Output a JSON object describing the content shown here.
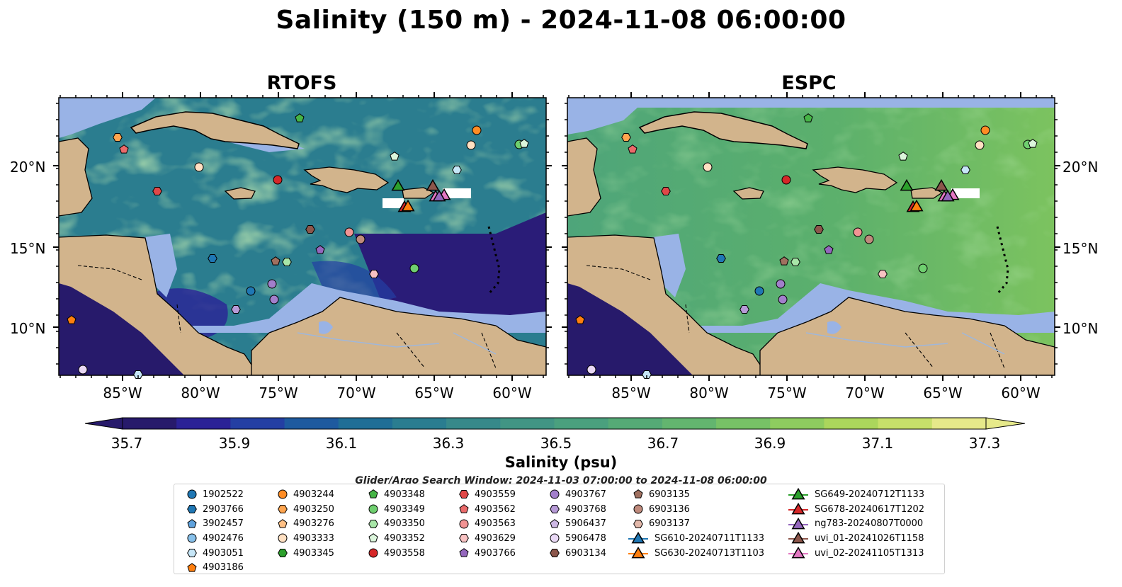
{
  "figure": {
    "title": "Salinity (150 m) - 2024-11-08 06:00:00",
    "panels": [
      "RTOFS",
      "ESPC"
    ],
    "colorbar_label": "Salinity (psu)",
    "colorbar_ticks": [
      "35.7",
      "35.9",
      "36.1",
      "36.3",
      "36.5",
      "36.7",
      "36.9",
      "37.1",
      "37.3"
    ],
    "colorbar_colors": [
      "#271a6b",
      "#2b2296",
      "#243fa3",
      "#1e5a9f",
      "#1f6e96",
      "#2a7d90",
      "#37898a",
      "#419584",
      "#4aa07e",
      "#55aa76",
      "#63b56f",
      "#77c166",
      "#8ecc5f",
      "#abd65c",
      "#c7e06a",
      "#e6e98a"
    ],
    "lat_ticks": [
      "20°N",
      "15°N",
      "10°N"
    ],
    "lon_ticks": [
      "85°W",
      "80°W",
      "75°W",
      "70°W",
      "65°W",
      "60°W"
    ],
    "search_window": "Glider/Argo Search Window: 2024-11-03 07:00:00 to 2024-11-08 06:00:00",
    "colors": {
      "land": "#d2b48c",
      "shallow": "#99b3e6",
      "espc_mean": "#5aaa6e",
      "rtofs_mean": "#3f8f88"
    }
  },
  "legend": {
    "columns": [
      [
        {
          "label": "1902522",
          "marker": "circle",
          "color": "#1f77b4"
        },
        {
          "label": "2903766",
          "marker": "hexagon",
          "color": "#1f77b4"
        },
        {
          "label": "3902457",
          "marker": "pentagon",
          "color": "#5fa2dd"
        },
        {
          "label": "4902476",
          "marker": "circle",
          "color": "#87c0ea"
        },
        {
          "label": "4903051",
          "marker": "hexagon",
          "color": "#c6e6f7"
        },
        {
          "label": "4903186",
          "marker": "pentagon",
          "color": "#ff7f0e"
        }
      ],
      [
        {
          "label": "4903244",
          "marker": "circle",
          "color": "#ff8c24"
        },
        {
          "label": "4903250",
          "marker": "hexagon",
          "color": "#ffa54f"
        },
        {
          "label": "4903276",
          "marker": "pentagon",
          "color": "#ffc085"
        },
        {
          "label": "4903333",
          "marker": "circle",
          "color": "#ffe0c2"
        },
        {
          "label": "4903345",
          "marker": "hexagon",
          "color": "#2ca02c"
        }
      ],
      [
        {
          "label": "4903348",
          "marker": "pentagon",
          "color": "#46b446"
        },
        {
          "label": "4903349",
          "marker": "circle",
          "color": "#6fcf6f"
        },
        {
          "label": "4903350",
          "marker": "hexagon",
          "color": "#a8e6a8"
        },
        {
          "label": "4903352",
          "marker": "pentagon",
          "color": "#dbf5db"
        },
        {
          "label": "4903558",
          "marker": "circle",
          "color": "#d62728"
        }
      ],
      [
        {
          "label": "4903559",
          "marker": "hexagon",
          "color": "#e04848"
        },
        {
          "label": "4903562",
          "marker": "pentagon",
          "color": "#ea6a6a"
        },
        {
          "label": "4903563",
          "marker": "circle",
          "color": "#f29494"
        },
        {
          "label": "4903629",
          "marker": "hexagon",
          "color": "#f8c2c2"
        },
        {
          "label": "4903766",
          "marker": "pentagon",
          "color": "#9467bd"
        }
      ],
      [
        {
          "label": "4903767",
          "marker": "circle",
          "color": "#a27fcb"
        },
        {
          "label": "4903768",
          "marker": "hexagon",
          "color": "#b69ad6"
        },
        {
          "label": "5906437",
          "marker": "pentagon",
          "color": "#cdb8e4"
        },
        {
          "label": "5906478",
          "marker": "circle",
          "color": "#e9d8f5"
        },
        {
          "label": "6903134",
          "marker": "hexagon",
          "color": "#8c564b"
        }
      ],
      [
        {
          "label": "6903135",
          "marker": "pentagon",
          "color": "#a0705f"
        },
        {
          "label": "6903136",
          "marker": "circle",
          "color": "#bf8a7c"
        },
        {
          "label": "6903137",
          "marker": "hexagon",
          "color": "#e2b8aa"
        },
        {
          "label": "SG610-20240711T1133",
          "marker": "triangle-line",
          "color": "#1f77b4"
        },
        {
          "label": "SG630-20240713T1103",
          "marker": "triangle-line",
          "color": "#ff7f0e"
        }
      ],
      [
        {
          "label": "SG649-20240712T1133",
          "marker": "triangle-line",
          "color": "#2ca02c"
        },
        {
          "label": "SG678-20240617T1202",
          "marker": "triangle-line",
          "color": "#d62728"
        },
        {
          "label": "ng783-20240807T0000",
          "marker": "triangle-line",
          "color": "#9467bd"
        },
        {
          "label": "uvi_01-20241026T1158",
          "marker": "triangle-line",
          "color": "#8c564b"
        },
        {
          "label": "uvi_02-20241105T1313",
          "marker": "triangle-line",
          "color": "#e377c2"
        }
      ]
    ]
  }
}
